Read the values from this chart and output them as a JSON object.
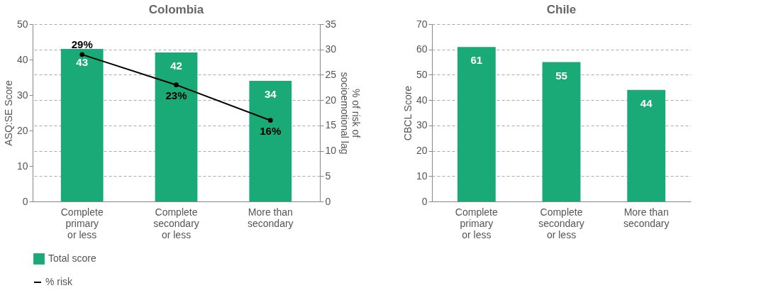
{
  "chart_data": [
    {
      "type": "bar",
      "title": "Colombia",
      "ylabel": "ASQ:SE Score",
      "y2label": "% of risk of socioemotional lag",
      "categories": [
        "Complete primary or less",
        "Complete secondary or less",
        "More than secondary"
      ],
      "ylim": [
        0,
        50
      ],
      "yticks": [
        0,
        10,
        20,
        30,
        40,
        50
      ],
      "y2lim": [
        0,
        35
      ],
      "y2ticks": [
        0,
        5,
        10,
        15,
        20,
        25,
        30,
        35
      ],
      "grid": true,
      "legend": "bottom",
      "data_labels": true,
      "series": [
        {
          "name": "Total score",
          "color": "#1aaa78",
          "values": [
            43,
            42,
            34
          ]
        },
        {
          "name": "% risk",
          "type": "line",
          "axis": "y2",
          "color": "#000000",
          "marker": "circle",
          "values": [
            29,
            23,
            16
          ],
          "value_labels": [
            "29%",
            "23%",
            "16%"
          ]
        }
      ]
    },
    {
      "type": "bar",
      "title": "Chile",
      "ylabel": "CBCL Score",
      "categories": [
        "Complete primary or less",
        "Complete secondary or less",
        "More than secondary"
      ],
      "ylim": [
        0,
        70
      ],
      "yticks": [
        0,
        10,
        20,
        30,
        40,
        50,
        60,
        70
      ],
      "grid": true,
      "data_labels": true,
      "series": [
        {
          "color": "#1aaa78",
          "values": [
            61,
            55,
            44
          ]
        }
      ]
    }
  ]
}
